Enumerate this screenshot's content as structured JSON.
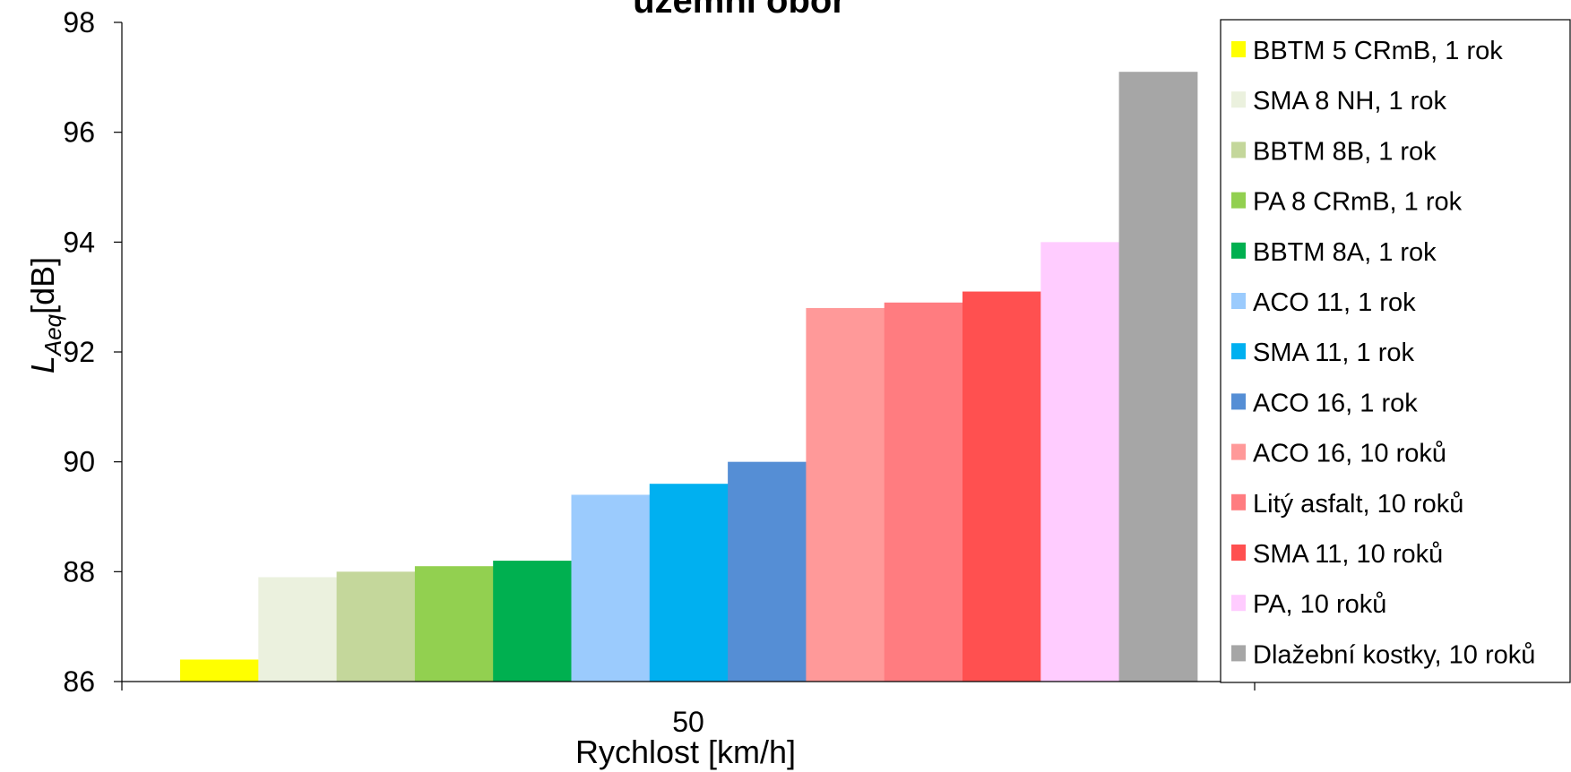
{
  "chart_data": {
    "type": "bar",
    "title": "územní obor",
    "xlabel": "Rychlost [km/h]",
    "ylabel_main": "L",
    "ylabel_sub": "Aeq",
    "ylabel_unit": "[dB]",
    "categories": [
      "50"
    ],
    "ylim": [
      86,
      98
    ],
    "yticks": [
      86,
      88,
      90,
      92,
      94,
      96,
      98
    ],
    "grid": false,
    "legend_position": "right",
    "series": [
      {
        "name": "BBTM 5 CRmB, 1 rok",
        "values": [
          86.4
        ],
        "color": "#ffff00"
      },
      {
        "name": "SMA 8 NH, 1 rok",
        "values": [
          87.9
        ],
        "color": "#ebf1de"
      },
      {
        "name": "BBTM 8B, 1 rok",
        "values": [
          88.0
        ],
        "color": "#c4d79b"
      },
      {
        "name": "PA 8 CRmB, 1 rok",
        "values": [
          88.1
        ],
        "color": "#92d050"
      },
      {
        "name": "BBTM 8A, 1 rok",
        "values": [
          88.2
        ],
        "color": "#00b050"
      },
      {
        "name": "ACO 11, 1 rok",
        "values": [
          89.4
        ],
        "color": "#9bcbfd"
      },
      {
        "name": "SMA 11, 1 rok",
        "values": [
          89.6
        ],
        "color": "#00b0f0"
      },
      {
        "name": "ACO 16, 1 rok",
        "values": [
          90.0
        ],
        "color": "#558ed5"
      },
      {
        "name": "ACO 16, 10 roků",
        "values": [
          92.8
        ],
        "color": "#ff9999"
      },
      {
        "name": "Litý asfalt, 10 roků",
        "values": [
          92.9
        ],
        "color": "#ff7c80"
      },
      {
        "name": "SMA 11, 10 roků",
        "values": [
          93.1
        ],
        "color": "#ff5050"
      },
      {
        "name": "PA, 10 roků",
        "values": [
          94.0
        ],
        "color": "#ffccff"
      },
      {
        "name": "Dlažební kostky, 10 roků",
        "values": [
          97.1
        ],
        "color": "#a6a6a6"
      }
    ]
  }
}
